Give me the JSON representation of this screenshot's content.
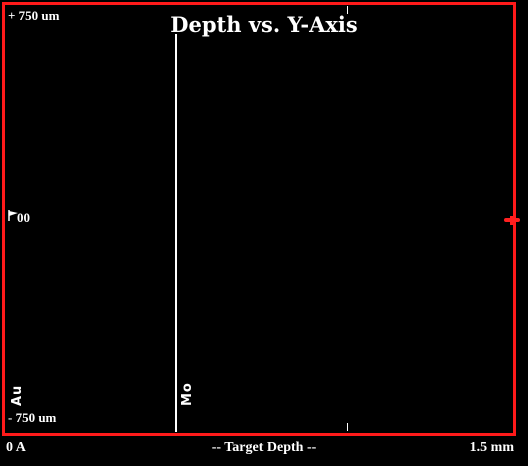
{
  "chart_data": {
    "type": "line",
    "title": "Depth vs. Y-Axis",
    "xlabel": "-- Target Depth --",
    "x_range_labels": [
      "0 A",
      "1.5 mm"
    ],
    "y_range_labels": [
      "+ 750 um",
      "00",
      "- 750 um"
    ],
    "layers": [
      {
        "name": "Au",
        "depth_fraction": 0.0
      },
      {
        "name": "Mo",
        "depth_fraction": 0.34
      }
    ]
  },
  "colors": {
    "frame": "#ff1a1a",
    "background": "#000000",
    "foreground": "#ffffff"
  },
  "icons": {
    "left_marker": "flag-marker-icon",
    "right_marker": "red-position-marker-icon"
  }
}
